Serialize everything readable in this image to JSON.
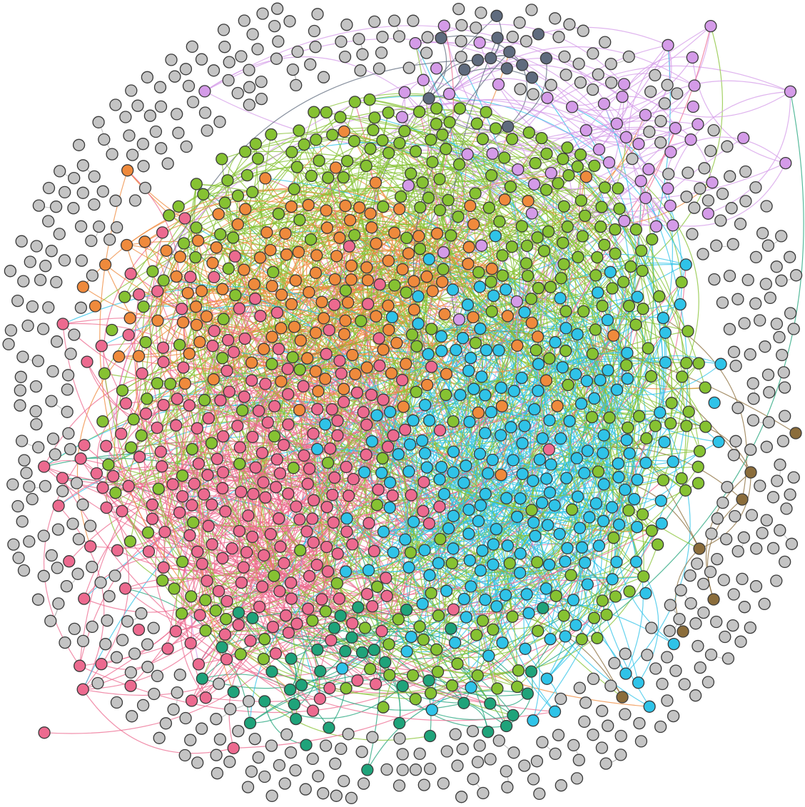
{
  "network": {
    "type": "force-directed-graph",
    "communities": [
      {
        "id": "pink",
        "color": "#ec6a8f"
      },
      {
        "id": "orange",
        "color": "#ef8a3c"
      },
      {
        "id": "green",
        "color": "#86c232"
      },
      {
        "id": "cyan",
        "color": "#2fc3e8"
      },
      {
        "id": "teal",
        "color": "#1fa37a"
      },
      {
        "id": "violet",
        "color": "#d49be8"
      },
      {
        "id": "slate",
        "color": "#5f6b7e"
      },
      {
        "id": "brown",
        "color": "#8b6d3b"
      },
      {
        "id": "isolated",
        "color": "#c4c4c4"
      }
    ],
    "background": "#ffffff",
    "node_outline": "#3a3a3a",
    "edge_style": "curved"
  }
}
